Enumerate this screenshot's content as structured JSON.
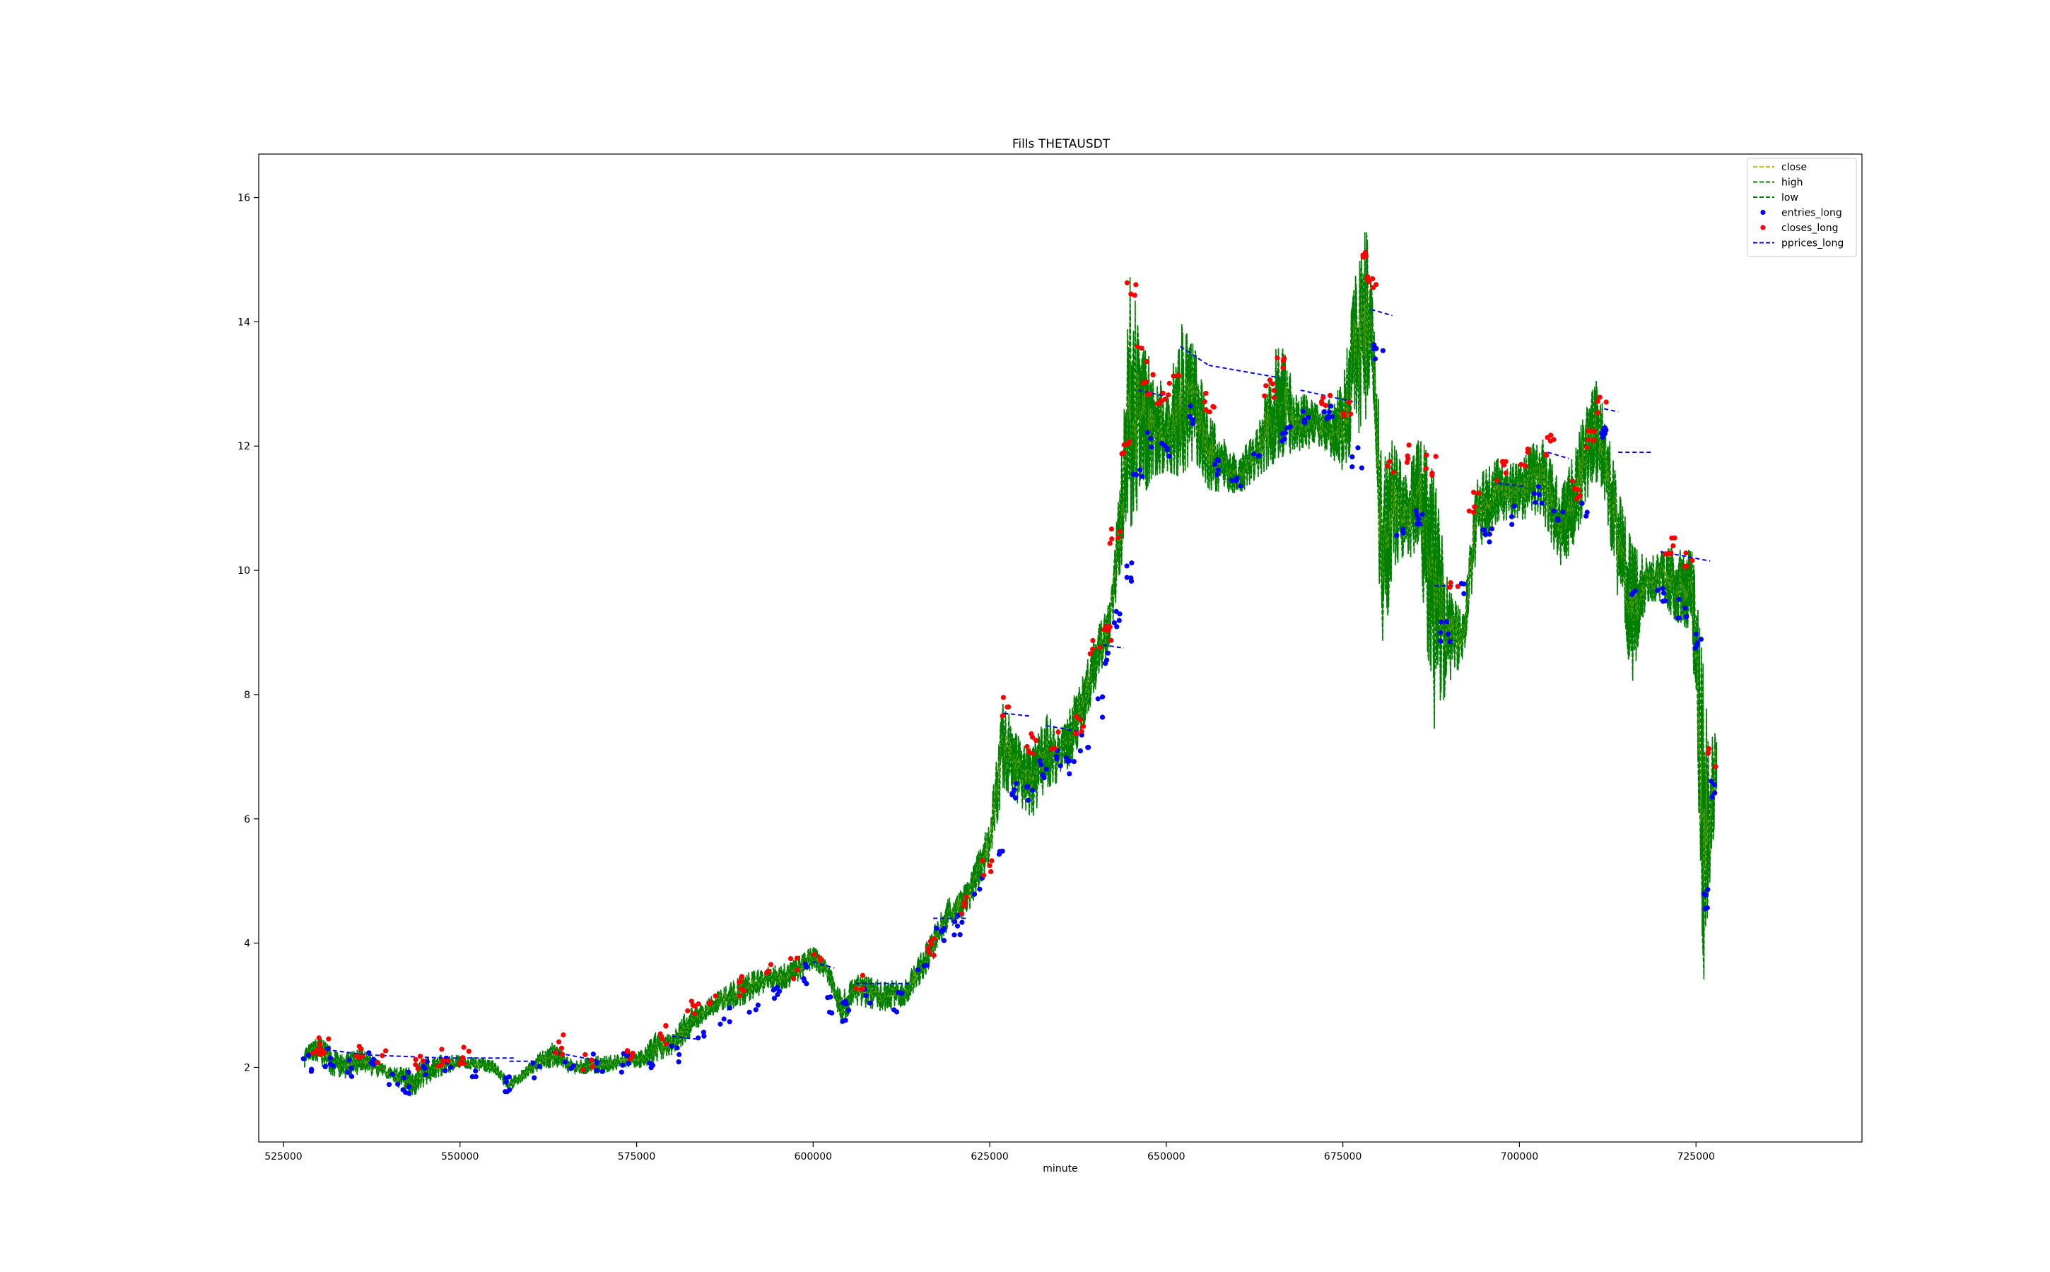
{
  "chart_data": {
    "type": "line",
    "title": "Fills THETAUSDT",
    "xlabel": "minute",
    "ylabel": "",
    "xlim": [
      521500,
      748500
    ],
    "ylim": [
      0.8,
      16.7
    ],
    "xticks": [
      525000,
      550000,
      575000,
      600000,
      625000,
      650000,
      675000,
      700000,
      725000
    ],
    "yticks": [
      2,
      4,
      6,
      8,
      10,
      12,
      14,
      16
    ],
    "xtick_labels": [
      "525000",
      "550000",
      "575000",
      "600000",
      "625000",
      "650000",
      "675000",
      "700000",
      "725000"
    ],
    "ytick_labels": [
      "2",
      "4",
      "6",
      "8",
      "10",
      "12",
      "14",
      "16"
    ],
    "grid": false,
    "legend_position": "top-right",
    "legend": [
      {
        "label": "close",
        "style": "dashed",
        "color": "#bfbf00"
      },
      {
        "label": "high",
        "style": "dashed",
        "color": "#008000"
      },
      {
        "label": "low",
        "style": "dashed",
        "color": "#008000"
      },
      {
        "label": "entries_long",
        "style": "marker",
        "color": "#0000ff"
      },
      {
        "label": "closes_long",
        "style": "marker",
        "color": "#ff0000"
      },
      {
        "label": "pprices_long",
        "style": "dashed",
        "color": "#0000ff"
      }
    ],
    "series": [
      {
        "name": "high",
        "color": "#008000",
        "x": [
          528000,
          530000,
          533000,
          536000,
          540000,
          543000,
          546000,
          550000,
          555000,
          557000,
          560000,
          563000,
          566000,
          570000,
          573000,
          576000,
          578000,
          580000,
          582000,
          585000,
          590000,
          593000,
          597000,
          600000,
          602000,
          604000,
          606000,
          610000,
          613000,
          616000,
          619000,
          622000,
          625000,
          627000,
          628500,
          631000,
          633000,
          635000,
          637000,
          640000,
          642000,
          643500,
          645000,
          646000,
          648000,
          650000,
          652000,
          654000,
          656000,
          660000,
          663000,
          666000,
          668000,
          672000,
          675000,
          678000,
          679500,
          680500,
          682000,
          684000,
          686000,
          688000,
          690000,
          692000,
          694000,
          697000,
          700000,
          703000,
          706000,
          708000,
          710500,
          712000,
          714000,
          716000,
          718000,
          720000,
          722000,
          724500,
          726000,
          727000,
          728000
        ],
        "values": [
          2.3,
          2.5,
          2.2,
          2.3,
          2.0,
          2.0,
          2.2,
          2.2,
          2.1,
          1.8,
          2.1,
          2.4,
          2.1,
          2.2,
          2.2,
          2.3,
          2.6,
          2.5,
          2.9,
          3.1,
          3.5,
          3.6,
          3.7,
          3.95,
          3.7,
          3.2,
          3.5,
          3.4,
          3.4,
          4.0,
          4.7,
          5.0,
          6.0,
          8.0,
          7.4,
          7.1,
          7.7,
          7.4,
          8.0,
          9.0,
          9.5,
          11.5,
          15.0,
          13.9,
          13.3,
          13.0,
          14.0,
          13.6,
          12.5,
          11.8,
          12.3,
          13.8,
          13.0,
          12.6,
          13.0,
          15.9,
          14.0,
          11.7,
          12.1,
          11.5,
          12.2,
          11.5,
          9.7,
          9.3,
          11.5,
          11.8,
          11.7,
          12.2,
          11.3,
          12.0,
          13.2,
          12.6,
          11.3,
          10.4,
          10.2,
          10.3,
          10.4,
          10.3,
          8.5,
          7.0,
          8.0
        ]
      },
      {
        "name": "low",
        "color": "#008000",
        "x": [
          528000,
          530000,
          533000,
          536000,
          540000,
          543000,
          546000,
          550000,
          555000,
          557000,
          560000,
          563000,
          566000,
          570000,
          573000,
          576000,
          578000,
          580000,
          582000,
          585000,
          590000,
          593000,
          597000,
          600000,
          602000,
          604000,
          606000,
          610000,
          613000,
          616000,
          619000,
          622000,
          625000,
          627000,
          628500,
          631000,
          633000,
          635000,
          637000,
          640000,
          642000,
          643500,
          645000,
          646000,
          648000,
          650000,
          652000,
          654000,
          656000,
          660000,
          663000,
          666000,
          668000,
          672000,
          675000,
          678000,
          679500,
          680500,
          682000,
          684000,
          686000,
          688000,
          690000,
          692000,
          694000,
          697000,
          700000,
          703000,
          706000,
          708000,
          710500,
          712000,
          714000,
          716000,
          718000,
          720000,
          722000,
          724500,
          726000,
          727000,
          728000
        ],
        "values": [
          2.0,
          2.0,
          1.8,
          1.9,
          1.8,
          1.5,
          1.8,
          2.0,
          1.9,
          1.6,
          1.9,
          2.0,
          1.9,
          1.9,
          2.0,
          2.0,
          2.1,
          2.2,
          2.4,
          2.8,
          3.0,
          3.2,
          3.3,
          3.6,
          3.4,
          2.7,
          3.0,
          2.9,
          3.0,
          3.5,
          4.2,
          4.5,
          5.3,
          6.5,
          6.3,
          6.0,
          6.5,
          6.6,
          7.0,
          8.1,
          8.8,
          10.0,
          10.7,
          11.0,
          11.5,
          11.6,
          11.5,
          11.8,
          11.3,
          11.2,
          11.5,
          11.8,
          11.9,
          12.0,
          11.6,
          12.4,
          12.6,
          8.3,
          10.0,
          10.3,
          10.0,
          7.4,
          8.2,
          8.5,
          10.3,
          10.8,
          10.8,
          10.9,
          10.0,
          10.5,
          11.5,
          11.2,
          9.5,
          8.2,
          9.5,
          9.5,
          9.2,
          9.0,
          3.2,
          5.0,
          6.5
        ]
      },
      {
        "name": "close",
        "color": "#bfbf00",
        "x": [
          528000,
          530000,
          533000,
          536000,
          540000,
          543000,
          546000,
          550000,
          555000,
          557000,
          560000,
          563000,
          566000,
          570000,
          573000,
          576000,
          578000,
          580000,
          582000,
          585000,
          590000,
          593000,
          597000,
          600000,
          602000,
          604000,
          606000,
          610000,
          613000,
          616000,
          619000,
          622000,
          625000,
          627000,
          628500,
          631000,
          633000,
          635000,
          637000,
          640000,
          642000,
          643500,
          645000,
          646000,
          648000,
          650000,
          652000,
          654000,
          656000,
          660000,
          663000,
          666000,
          668000,
          672000,
          675000,
          678000,
          679500,
          680500,
          682000,
          684000,
          686000,
          688000,
          690000,
          692000,
          694000,
          697000,
          700000,
          703000,
          706000,
          708000,
          710500,
          712000,
          714000,
          716000,
          718000,
          720000,
          722000,
          724500,
          726000,
          727000,
          728000
        ],
        "values": [
          2.15,
          2.3,
          2.0,
          2.1,
          1.9,
          1.75,
          2.0,
          2.1,
          2.0,
          1.7,
          2.0,
          2.2,
          2.0,
          2.05,
          2.1,
          2.15,
          2.35,
          2.35,
          2.65,
          2.95,
          3.25,
          3.4,
          3.5,
          3.8,
          3.55,
          2.95,
          3.25,
          3.15,
          3.2,
          3.75,
          4.45,
          4.75,
          5.65,
          7.25,
          6.85,
          6.55,
          7.1,
          7.0,
          7.5,
          8.55,
          9.15,
          10.75,
          12.85,
          12.45,
          12.4,
          12.3,
          12.75,
          12.7,
          11.9,
          11.5,
          11.9,
          12.8,
          12.45,
          12.3,
          12.3,
          14.15,
          13.3,
          10.0,
          11.05,
          10.9,
          11.1,
          9.45,
          8.95,
          8.9,
          10.9,
          11.3,
          11.25,
          11.55,
          10.65,
          11.25,
          12.35,
          11.9,
          10.4,
          9.3,
          9.85,
          9.9,
          9.8,
          9.65,
          5.85,
          6.0,
          7.25
        ]
      },
      {
        "name": "pprices_long",
        "color": "#0000ff",
        "segments": [
          {
            "x": [
              530000,
              537000
            ],
            "y": [
              2.3,
              2.2
            ]
          },
          {
            "x": [
              537000,
              548000
            ],
            "y": [
              2.2,
              2.15
            ]
          },
          {
            "x": [
              548000,
              558000
            ],
            "y": [
              2.15,
              2.15
            ]
          },
          {
            "x": [
              557000,
              561000
            ],
            "y": [
              2.1,
              2.1
            ]
          },
          {
            "x": [
              563000,
              570000
            ],
            "y": [
              2.25,
              2.1
            ]
          },
          {
            "x": [
              580000,
              584000
            ],
            "y": [
              2.5,
              2.45
            ]
          },
          {
            "x": [
              600000,
              603000
            ],
            "y": [
              3.7,
              3.6
            ]
          },
          {
            "x": [
              606000,
              614000
            ],
            "y": [
              3.35,
              3.35
            ]
          },
          {
            "x": [
              617000,
              622000
            ],
            "y": [
              4.4,
              4.4
            ]
          },
          {
            "x": [
              627000,
              631000
            ],
            "y": [
              7.7,
              7.65
            ]
          },
          {
            "x": [
              633000,
              638000
            ],
            "y": [
              7.5,
              7.4
            ]
          },
          {
            "x": [
              641000,
              644000
            ],
            "y": [
              8.8,
              8.75
            ]
          },
          {
            "x": [
              646000,
              650000
            ],
            "y": [
              12.9,
              12.8
            ]
          },
          {
            "x": [
              652000,
              656000
            ],
            "y": [
              13.6,
              13.3
            ]
          },
          {
            "x": [
              656000,
              666000
            ],
            "y": [
              13.3,
              13.1
            ]
          },
          {
            "x": [
              669000,
              677000
            ],
            "y": [
              12.9,
              12.7
            ]
          },
          {
            "x": [
              679000,
              682000
            ],
            "y": [
              14.2,
              14.1
            ]
          },
          {
            "x": [
              688000,
              692000
            ],
            "y": [
              9.75,
              9.75
            ]
          },
          {
            "x": [
              697000,
              701000
            ],
            "y": [
              11.4,
              11.35
            ]
          },
          {
            "x": [
              704000,
              707000
            ],
            "y": [
              11.9,
              11.8
            ]
          },
          {
            "x": [
              712000,
              714000
            ],
            "y": [
              12.6,
              12.55
            ]
          },
          {
            "x": [
              714000,
              719000
            ],
            "y": [
              11.9,
              11.9
            ]
          },
          {
            "x": [
              720000,
              727000
            ],
            "y": [
              10.3,
              10.15
            ]
          }
        ]
      },
      {
        "name": "entries_long",
        "color": "#0000ff",
        "x": [
          528500,
          531500,
          534000,
          537500,
          540500,
          542500,
          545000,
          548500,
          552000,
          556500,
          561000,
          565500,
          569500,
          573500,
          577500,
          580500,
          584000,
          587500,
          591500,
          595000,
          599000,
          602500,
          604500,
          608000,
          612000,
          615500,
          618000,
          620500,
          623500,
          626500,
          628500,
          630500,
          632500,
          634500,
          636500,
          638500,
          640500,
          642000,
          643000,
          644500,
          646000,
          648000,
          650000,
          653500,
          657000,
          660000,
          663000,
          667000,
          670000,
          673000,
          677000,
          680000,
          683000,
          686000,
          689500,
          692000,
          695500,
          699000,
          702500,
          705500,
          709000,
          712000,
          716000,
          720000,
          723000,
          725500,
          726500,
          727200
        ],
        "values": [
          2.1,
          2.15,
          2.0,
          2.1,
          1.85,
          1.75,
          1.95,
          2.05,
          2.0,
          1.75,
          1.95,
          2.0,
          2.05,
          2.05,
          2.1,
          2.2,
          2.6,
          2.8,
          3.05,
          3.2,
          3.5,
          3.05,
          2.9,
          3.1,
          3.05,
          3.6,
          4.1,
          4.3,
          4.9,
          5.5,
          6.5,
          6.4,
          6.8,
          7.0,
          6.9,
          7.2,
          7.8,
          8.5,
          9.2,
          10.0,
          11.5,
          12.1,
          12.0,
          12.5,
          11.7,
          11.5,
          11.8,
          12.2,
          12.4,
          12.5,
          11.8,
          13.5,
          10.5,
          10.8,
          9.0,
          9.8,
          10.6,
          10.9,
          11.2,
          10.8,
          11.0,
          12.2,
          9.6,
          9.6,
          9.4,
          8.9,
          4.7,
          6.5
        ],
        "note_markers": [
          726300,
          3.6,
          726700,
          5.4
        ]
      },
      {
        "name": "closes_long",
        "color": "#ff0000",
        "x": [
          529500,
          531000,
          535500,
          539000,
          544500,
          547500,
          550500,
          564000,
          568000,
          574500,
          579000,
          583000,
          586000,
          589500,
          593500,
          597000,
          600500,
          606500,
          616500,
          621000,
          624500,
          627500,
          631000,
          634000,
          637500,
          640000,
          641500,
          642800,
          644000,
          645200,
          646500,
          647500,
          649500,
          651000,
          656000,
          664500,
          666500,
          672500,
          675500,
          678000,
          679000,
          681500,
          684500,
          687500,
          690500,
          693500,
          697500,
          701000,
          704500,
          708000,
          710000,
          711500,
          721500,
          724000,
          727500
        ],
        "values": [
          2.35,
          2.4,
          2.3,
          2.1,
          2.05,
          2.15,
          2.2,
          2.35,
          2.1,
          2.15,
          2.5,
          2.9,
          3.0,
          3.3,
          3.5,
          3.6,
          3.75,
          3.4,
          3.9,
          4.6,
          5.2,
          7.8,
          7.2,
          7.3,
          7.5,
          8.7,
          9.0,
          10.5,
          12.0,
          14.5,
          13.5,
          13.0,
          12.8,
          13.1,
          12.7,
          12.9,
          13.4,
          12.8,
          12.6,
          15.0,
          14.7,
          11.6,
          11.9,
          11.7,
          9.7,
          11.1,
          11.6,
          11.8,
          12.0,
          11.3,
          12.1,
          12.7,
          10.4,
          10.2,
          7.0
        ]
      }
    ]
  }
}
